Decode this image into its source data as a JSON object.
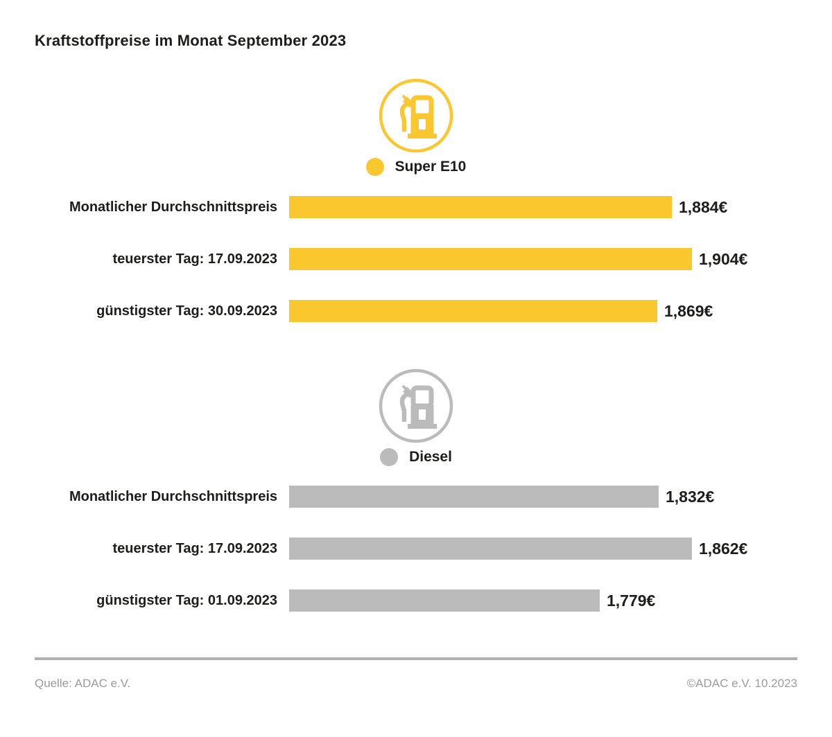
{
  "header": {
    "title": "Kraftstoffpreise im Monat September 2023"
  },
  "chart_data": [
    {
      "type": "bar",
      "orientation": "horizontal",
      "title": "Super E10",
      "icon": "fuel-pump-icon",
      "color": "#FBC72F",
      "unit": "EUR",
      "axis_baseline": 1.5,
      "categories": [
        "Monatlicher Durchschnittspreis",
        "teuerster Tag: 17.09.2023",
        "günstigster Tag: 30.09.2023"
      ],
      "values": [
        1.884,
        1.904,
        1.869
      ],
      "value_labels": [
        "1,884€",
        "1,904€",
        "1,869€"
      ]
    },
    {
      "type": "bar",
      "orientation": "horizontal",
      "title": "Diesel",
      "icon": "fuel-pump-icon",
      "color": "#BBBBBB",
      "unit": "EUR",
      "axis_baseline": 1.5,
      "categories": [
        "Monatlicher Durchschnittspreis",
        "teuerster Tag: 17.09.2023",
        "günstigster Tag: 01.09.2023"
      ],
      "values": [
        1.832,
        1.862,
        1.779
      ],
      "value_labels": [
        "1,832€",
        "1,862€",
        "1,779€"
      ]
    }
  ],
  "footer": {
    "source": "Quelle: ADAC e.V.",
    "copyright": "©ADAC e.V. 10.2023"
  }
}
